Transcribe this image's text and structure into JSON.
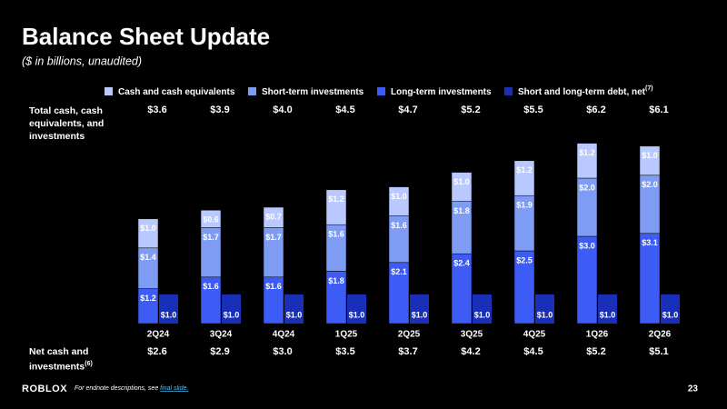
{
  "chart_data": {
    "type": "bar",
    "title": "Balance Sheet Update",
    "subtitle": "($ in billions, unaudited)",
    "categories": [
      "2Q24",
      "3Q24",
      "4Q24",
      "1Q25",
      "2Q25",
      "3Q25",
      "4Q25",
      "1Q26",
      "2Q26"
    ],
    "series": [
      {
        "name": "Long-term investments",
        "color": "#3d5cf5",
        "stacked": true,
        "values": [
          1.2,
          1.6,
          1.6,
          1.8,
          2.1,
          2.4,
          2.5,
          3.0,
          3.1
        ],
        "value_labels": [
          "$1.2",
          "$1.6",
          "$1.6",
          "$1.8",
          "$2.1",
          "$2.4",
          "$2.5",
          "$3.0",
          "$3.1"
        ]
      },
      {
        "name": "Short-term investments",
        "color": "#7f9cf5",
        "stacked": true,
        "values": [
          1.4,
          1.7,
          1.7,
          1.6,
          1.6,
          1.8,
          1.9,
          2.0,
          2.0
        ],
        "value_labels": [
          "$1.4",
          "$1.7",
          "$1.7",
          "$1.6",
          "$1.6",
          "$1.8",
          "$1.9",
          "$2.0",
          "$2.0"
        ]
      },
      {
        "name": "Cash and cash equivalents",
        "color": "#b9c8ff",
        "stacked": true,
        "values": [
          1.0,
          0.6,
          0.7,
          1.2,
          1.0,
          1.0,
          1.2,
          1.2,
          1.0
        ],
        "value_labels": [
          "$1.0",
          "$0.6",
          "$0.7",
          "$1.2",
          "$1.0",
          "$1.0",
          "$1.2",
          "$1.2",
          "$1.0"
        ]
      },
      {
        "name": "Short and long-term debt, net",
        "name_note": "(7)",
        "color": "#1a2fb8",
        "stacked": false,
        "values": [
          1.0,
          1.0,
          1.0,
          1.0,
          1.0,
          1.0,
          1.0,
          1.0,
          1.0
        ],
        "value_labels": [
          "$1.0",
          "$1.0",
          "$1.0",
          "$1.0",
          "$1.0",
          "$1.0",
          "$1.0",
          "$1.0",
          "$1.0"
        ]
      }
    ],
    "legend_order": [
      2,
      1,
      0,
      3
    ],
    "total_row": {
      "label": "Total cash, cash equivalents, and investments",
      "values": [
        "$3.6",
        "$3.9",
        "$4.0",
        "$4.5",
        "$4.7",
        "$5.2",
        "$5.5",
        "$6.2",
        "$6.1"
      ]
    },
    "net_row": {
      "label": "Net cash and investments",
      "label_note": "(6)",
      "values": [
        "$2.6",
        "$2.9",
        "$3.0",
        "$3.5",
        "$3.7",
        "$4.2",
        "$4.5",
        "$5.2",
        "$5.1"
      ]
    }
  },
  "footer": {
    "logo": "ROBLOX",
    "note": "For endnote descriptions, see ",
    "link": "final slide.",
    "page": "23"
  }
}
